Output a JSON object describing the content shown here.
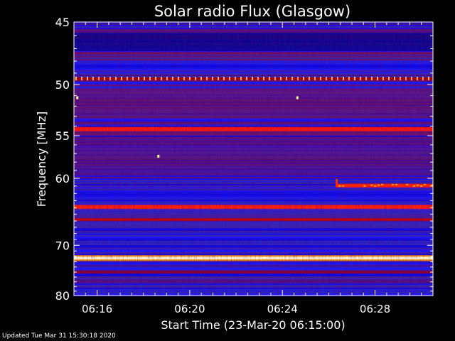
{
  "chart_data": {
    "type": "heatmap",
    "title": "Solar radio Flux (Glasgow)",
    "xlabel": "Start Time (23-Mar-20 06:15:00)",
    "ylabel": "Frequency [MHz]",
    "x_range_minutes": [
      0,
      15.5
    ],
    "x_ticks": [
      {
        "label": "06:16",
        "value": 1
      },
      {
        "label": "06:20",
        "value": 5
      },
      {
        "label": "06:24",
        "value": 9
      },
      {
        "label": "06:28",
        "value": 13
      }
    ],
    "y_range_mhz": [
      45,
      80
    ],
    "y_ticks": [
      {
        "label": "45",
        "value": 45
      },
      {
        "label": "50",
        "value": 50
      },
      {
        "label": "55",
        "value": 55
      },
      {
        "label": "60",
        "value": 60
      },
      {
        "label": "70",
        "value": 70
      },
      {
        "label": "80",
        "value": 80
      }
    ],
    "y_scale": "reciprocal",
    "colormap": [
      "#000050",
      "#1a1aff",
      "#3a2aa8",
      "#7a1050",
      "#b00000",
      "#ff2000",
      "#ff8800",
      "#ffff80",
      "#ffffff"
    ],
    "emission_bands": [
      {
        "freq": 49.5,
        "intensity": 0.75,
        "pattern": "dotted"
      },
      {
        "freq": 54.3,
        "intensity": 0.6
      },
      {
        "freq": 63.9,
        "intensity": 0.7
      },
      {
        "freq": 65.8,
        "intensity": 0.4
      },
      {
        "freq": 72.3,
        "intensity": 1.0
      },
      {
        "freq": 75.0,
        "intensity": 0.35
      }
    ],
    "step_feature": {
      "start_minute": 11.3,
      "end_minute": 15.5,
      "freq": 61.0
    }
  },
  "footer": {
    "updated": "Updated Tue Mar 31 15:30:18 2020"
  }
}
